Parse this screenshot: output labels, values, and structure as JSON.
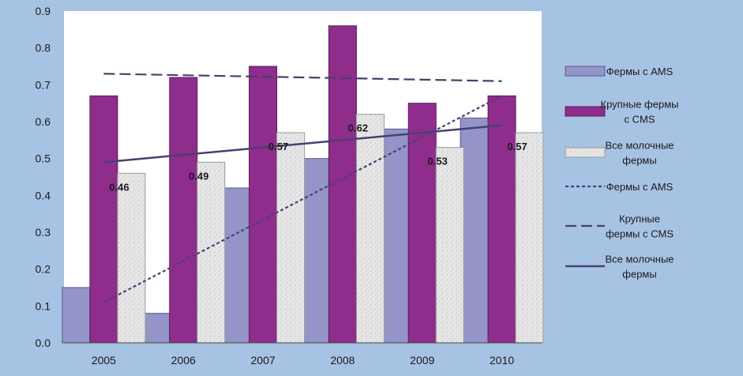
{
  "chart_data": {
    "type": "bar",
    "title": "",
    "xlabel": "",
    "ylabel": "",
    "ylim": [
      0,
      0.9
    ],
    "yticks": [
      "0.0",
      "0.1",
      "0.2",
      "0.3",
      "0.4",
      "0.5",
      "0.6",
      "0.7",
      "0.8",
      "0.9"
    ],
    "categories": [
      "2005",
      "2006",
      "2007",
      "2008",
      "2009",
      "2010"
    ],
    "series": [
      {
        "name": "Фермы с AMS",
        "legend_lines": [
          "Фермы с AMS"
        ],
        "kind": "bar",
        "color": "#9394c8",
        "values": [
          0.15,
          0.08,
          0.42,
          0.5,
          0.58,
          0.61
        ]
      },
      {
        "name": "Крупные фермы с CMS",
        "legend_lines": [
          "Крупные фермы",
          "с CMS"
        ],
        "kind": "bar",
        "color": "#8e2d8c",
        "values": [
          0.67,
          0.72,
          0.75,
          0.86,
          0.65,
          0.67
        ]
      },
      {
        "name": "Все молочные фермы",
        "legend_lines": [
          "Все молочные",
          "фермы"
        ],
        "kind": "bar",
        "color": "#e4e4e4",
        "values": [
          0.46,
          0.49,
          0.57,
          0.62,
          0.53,
          0.57
        ],
        "data_labels": [
          "0.46",
          "0.49",
          "0.57",
          "0.62",
          "0.53",
          "0.57"
        ]
      }
    ],
    "trendlines": [
      {
        "name": "Фермы с AMS",
        "legend_lines": [
          "Фермы с AMS"
        ],
        "style": "dotted",
        "color": "#4a3f7a",
        "start": 0.11,
        "end": 0.67
      },
      {
        "name": "Крупные фермы с CMS",
        "legend_lines": [
          "Крупные",
          "фермы с CMS"
        ],
        "style": "dashed",
        "color": "#4a3f6a",
        "start": 0.73,
        "end": 0.71
      },
      {
        "name": "Все молочные фермы",
        "legend_lines": [
          "Все молочные",
          "фермы"
        ],
        "style": "solid",
        "color": "#4a3f75",
        "start": 0.49,
        "end": 0.59
      }
    ],
    "legend_position": "right",
    "grid": false
  }
}
